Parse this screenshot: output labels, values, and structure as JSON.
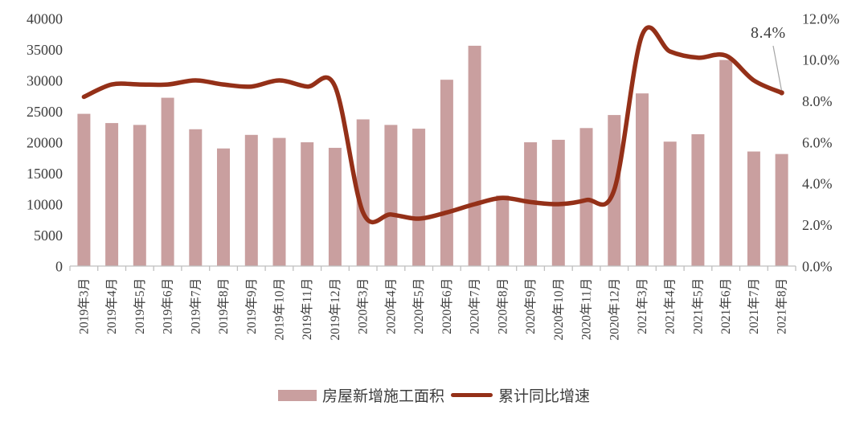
{
  "chart_data": {
    "type": "bar+line combo",
    "title": "",
    "categories": [
      "2019年3月",
      "2019年4月",
      "2019年5月",
      "2019年6月",
      "2019年7月",
      "2019年8月",
      "2019年9月",
      "2019年10月",
      "2019年11月",
      "2019年12月",
      "2020年3月",
      "2020年4月",
      "2020年5月",
      "2020年6月",
      "2020年7月",
      "2020年8月",
      "2020年9月",
      "2020年10月",
      "2020年11月",
      "2020年12月",
      "2021年3月",
      "2021年4月",
      "2021年5月",
      "2021年6月",
      "2021年7月",
      "2021年8月"
    ],
    "series": [
      {
        "name": "房屋新增施工面积",
        "type": "bar",
        "axis": "left",
        "color": "#c99f9f",
        "values": [
          24600,
          23100,
          22800,
          27200,
          22100,
          19000,
          21200,
          20700,
          20000,
          19100,
          23700,
          22800,
          22200,
          30100,
          35600,
          11400,
          20000,
          20400,
          22300,
          24400,
          27900,
          20100,
          21300,
          33300,
          18500,
          18100
        ]
      },
      {
        "name": "累计同比增速",
        "type": "line",
        "axis": "right",
        "color": "#943018",
        "values": [
          8.2,
          8.8,
          8.8,
          8.8,
          9.0,
          8.8,
          8.7,
          9.0,
          8.7,
          8.7,
          2.6,
          2.5,
          2.3,
          2.6,
          3.0,
          3.3,
          3.1,
          3.0,
          3.2,
          3.7,
          11.2,
          10.4,
          10.1,
          10.2,
          9.0,
          8.4
        ]
      }
    ],
    "left_axis": {
      "min": 0,
      "max": 40000,
      "step": 5000,
      "tick_labels": [
        "0",
        "5000",
        "10000",
        "15000",
        "20000",
        "25000",
        "30000",
        "35000",
        "40000"
      ]
    },
    "right_axis": {
      "min": 0,
      "max": 12,
      "step": 2,
      "tick_labels": [
        "0.0%",
        "2.0%",
        "4.0%",
        "6.0%",
        "8.0%",
        "10.0%",
        "12.0%"
      ]
    },
    "annotation": {
      "text": "8.4%",
      "points_to_category": "2021年8月",
      "points_to_value": 8.4
    },
    "grid": false,
    "legend_position": "bottom"
  },
  "colors": {
    "bar_fill": "#c99f9f",
    "line_stroke": "#943018",
    "axis_line": "#bfbfbf",
    "axis_text": "#3d3d3d",
    "leader_line": "#a6a6a6",
    "background": "#ffffff"
  }
}
